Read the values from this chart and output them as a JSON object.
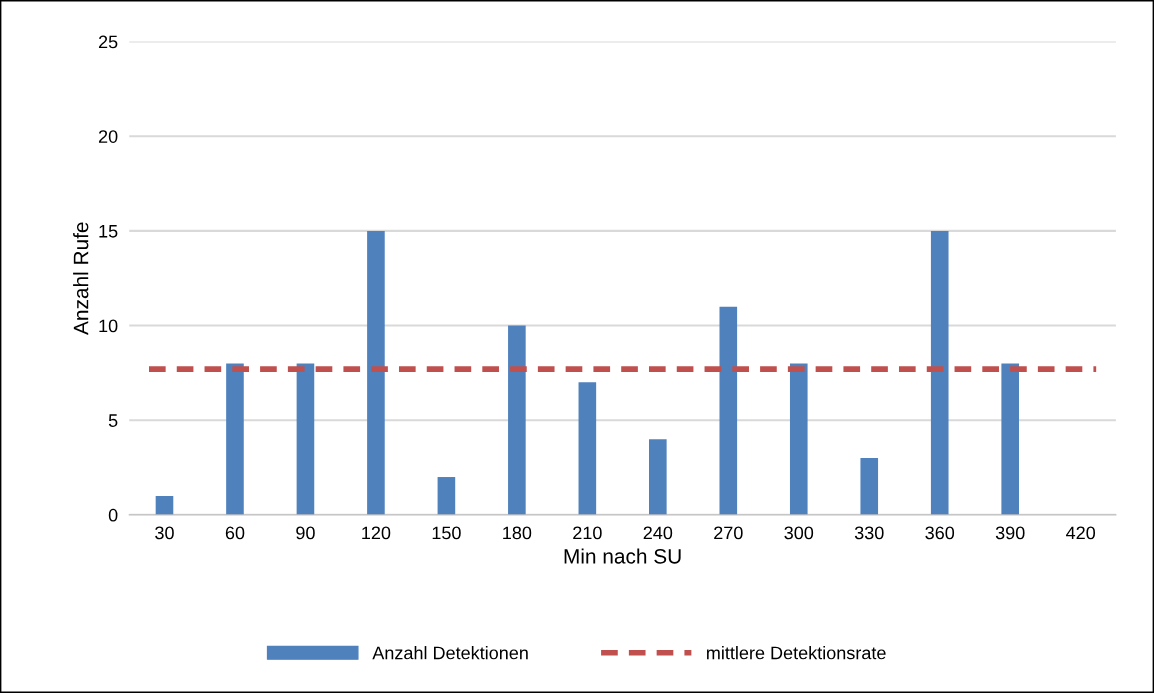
{
  "chart_data": {
    "type": "bar",
    "xlabel": "Min nach SU",
    "ylabel": "Anzahl Rufe",
    "categories": [
      "30",
      "60",
      "90",
      "120",
      "150",
      "180",
      "210",
      "240",
      "270",
      "300",
      "330",
      "360",
      "390",
      "420"
    ],
    "series": [
      {
        "name": "Anzahl Detektionen",
        "color": "#4f81bd",
        "values": [
          1,
          8,
          8,
          15,
          2,
          10,
          7,
          4,
          11,
          8,
          3,
          15,
          8,
          0
        ]
      }
    ],
    "ref_lines": [
      {
        "axis": "y",
        "value": 7.7,
        "label": "mittlere Detektionsrate",
        "color": "#c0504d",
        "line_style": "dashed"
      }
    ],
    "ylim": [
      0,
      25
    ],
    "yticks": [
      0,
      5,
      10,
      15,
      20,
      25
    ],
    "grid": "y",
    "legend": "bottom"
  }
}
